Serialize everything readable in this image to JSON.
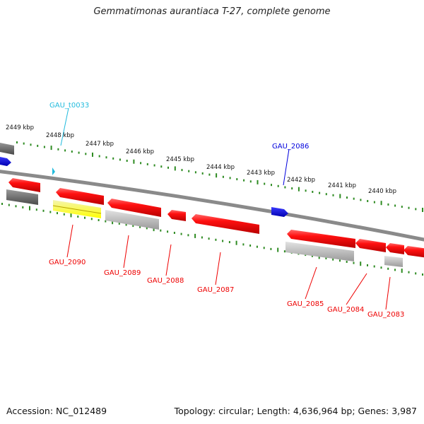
{
  "title": "Gemmatimonas aurantiaca T-27, complete genome",
  "footer": {
    "accession": "Accession: NC_012489",
    "topology": "Topology: circular; Length: 4,636,964 bp; Genes: 3,987"
  },
  "ruler_labels": [
    "2449 kbp",
    "2448 kbp",
    "2447 kbp",
    "2446 kbp",
    "2445 kbp",
    "2444 kbp",
    "2443 kbp",
    "2442 kbp",
    "2441 kbp",
    "2440 kbp"
  ],
  "gene_labels": {
    "GAU_t0033": "GAU_t0033",
    "GAU_2086": "GAU_2086",
    "GAU_2090": "GAU_2090",
    "GAU_2089": "GAU_2089",
    "GAU_2088": "GAU_2088",
    "GAU_2087": "GAU_2087",
    "GAU_2085": "GAU_2085",
    "GAU_2084": "GAU_2084",
    "GAU_2083": "GAU_2083"
  },
  "colors": {
    "cds": "#ee0000",
    "rna_label": "#22bbdd",
    "blue_feature": "#0000dd",
    "tick": "#2e8b22",
    "backbone": "#888888",
    "gray_feature": "#b0b0b0",
    "dark_gray_feature": "#666666",
    "yellow_feature": "#f2ea10"
  }
}
